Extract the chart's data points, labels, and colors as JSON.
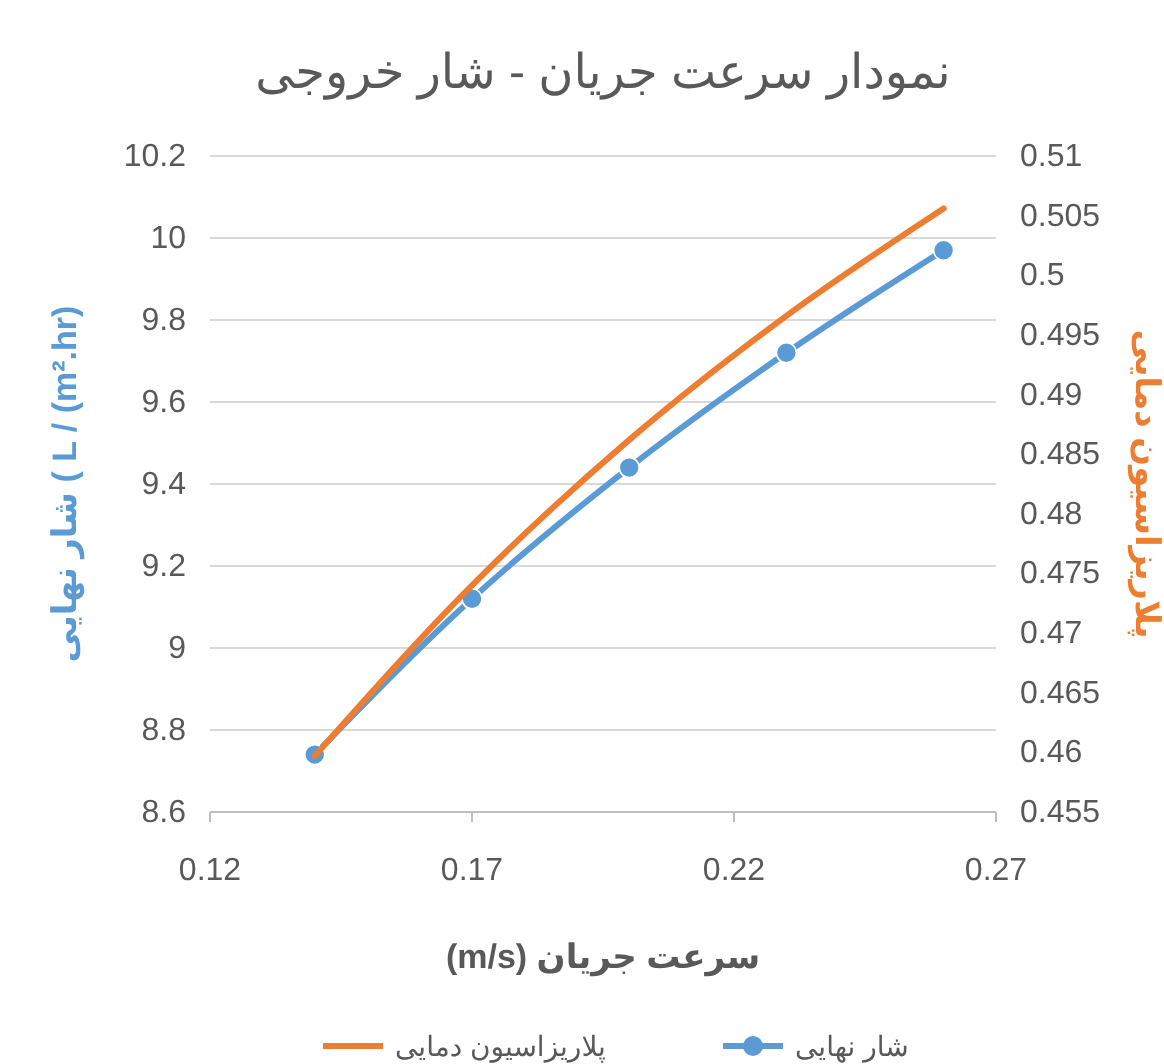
{
  "chart_data": {
    "type": "line",
    "title": "نمودار سرعت جریان - شار خروجی",
    "xlabel": "سرعت جریان (m/s)",
    "ylabel": "شار نهایی ( L / (m².hr)",
    "y2label": "پلاریزاسیون دمایی",
    "x": [
      0.14,
      0.17,
      0.2,
      0.23,
      0.26
    ],
    "series": [
      {
        "name": "شار نهایی",
        "color": "#5b9bd5",
        "marker": "circle",
        "values": [
          8.74,
          9.12,
          9.44,
          9.72,
          9.97
        ]
      },
      {
        "name": "پلاریزاسیون دمایی",
        "color": "#ed7d31",
        "axis": "y2",
        "marker": "none",
        "values": [
          0.4597,
          0.474,
          0.4862,
          0.4966,
          0.5056
        ]
      }
    ],
    "xlim": [
      0.12,
      0.27
    ],
    "xticks": [
      0.12,
      0.17,
      0.22,
      0.27
    ],
    "ylim": [
      8.6,
      10.2
    ],
    "yticks": [
      8.6,
      8.8,
      9,
      9.2,
      9.4,
      9.6,
      9.8,
      10,
      10.2
    ],
    "y2lim": [
      0.455,
      0.51
    ],
    "y2ticks": [
      0.455,
      0.46,
      0.465,
      0.47,
      0.475,
      0.48,
      0.485,
      0.49,
      0.495,
      0.5,
      0.505,
      0.51
    ],
    "grid": "y",
    "legend": "bottom"
  }
}
